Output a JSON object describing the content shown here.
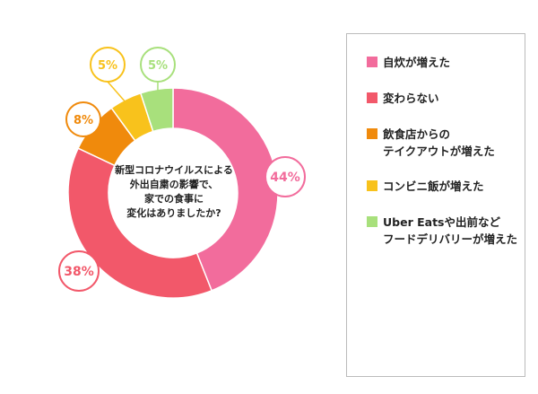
{
  "chart_data": {
    "type": "pie",
    "title": "新型コロナウイルスによる\n外出自粛の影響で、\n家での食事に\n変化はありましたか?",
    "categories": [
      "自炊が増えた",
      "変わらない",
      "飲食店からの\nテイクアウトが増えた",
      "コンビニ飯が増えた",
      "Uber Eatsや出前など\nフードデリバリーが増えた"
    ],
    "values": [
      44,
      38,
      8,
      5,
      5
    ],
    "labels": [
      "44%",
      "38%",
      "8%",
      "5%",
      "5%"
    ],
    "colors": [
      "#f26c9c",
      "#f2586a",
      "#f08a0c",
      "#f8c21c",
      "#a8e07c"
    ],
    "legend": "right"
  }
}
